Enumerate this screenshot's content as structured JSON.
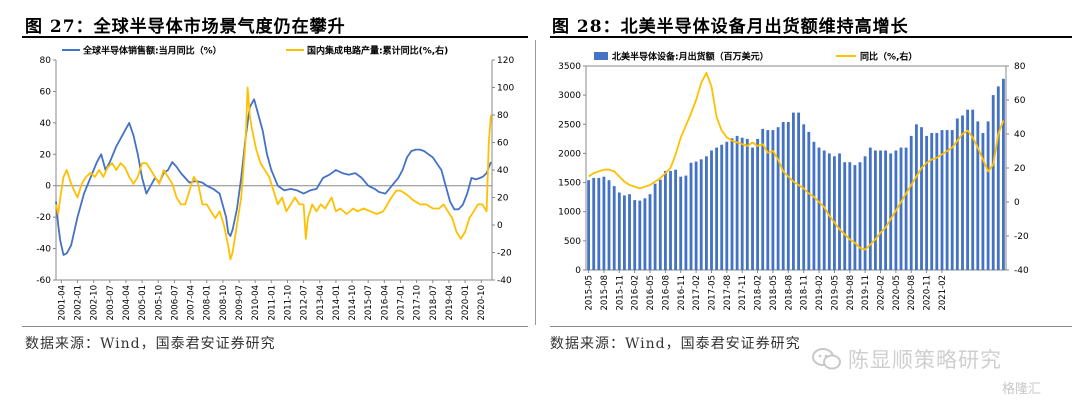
{
  "panel1": {
    "title": "图 27：全球半导体市场景气度仍在攀升",
    "source": "数据来源：Wind，国泰君安证券研究",
    "chart_data": {
      "type": "line",
      "series": [
        {
          "name": "全球半导体销售额:当月同比（%）",
          "axis": "left",
          "color": "#4472C4",
          "x": [
            2001.0,
            2001.1,
            2001.2,
            2001.35,
            2001.5,
            2001.7,
            2002.0,
            2002.3,
            2002.6,
            2002.9,
            2003.1,
            2003.3,
            2003.5,
            2003.8,
            2004.0,
            2004.2,
            2004.4,
            2004.6,
            2004.8,
            2005.0,
            2005.2,
            2005.4,
            2005.6,
            2005.8,
            2006.0,
            2006.2,
            2006.4,
            2006.6,
            2006.8,
            2007.0,
            2007.2,
            2007.5,
            2007.8,
            2008.0,
            2008.3,
            2008.6,
            2008.9,
            2009.0,
            2009.1,
            2009.2,
            2009.4,
            2009.6,
            2009.8,
            2010.0,
            2010.2,
            2010.4,
            2010.6,
            2010.8,
            2011.0,
            2011.3,
            2011.6,
            2011.9,
            2012.2,
            2012.5,
            2012.8,
            2013.1,
            2013.4,
            2013.7,
            2014.0,
            2014.3,
            2014.6,
            2014.9,
            2015.2,
            2015.5,
            2015.8,
            2016.0,
            2016.3,
            2016.6,
            2016.9,
            2017.1,
            2017.3,
            2017.5,
            2017.7,
            2017.9,
            2018.1,
            2018.3,
            2018.5,
            2018.7,
            2018.9,
            2019.1,
            2019.3,
            2019.5,
            2019.7,
            2019.9,
            2020.1,
            2020.3,
            2020.5,
            2020.7,
            2020.85,
            2021.0,
            2021.2
          ],
          "y": [
            -10,
            -25,
            -35,
            -44,
            -43,
            -38,
            -20,
            -5,
            5,
            15,
            20,
            10,
            15,
            25,
            30,
            35,
            40,
            32,
            20,
            5,
            -5,
            0,
            5,
            2,
            8,
            10,
            15,
            12,
            8,
            5,
            2,
            3,
            2,
            0,
            -2,
            -5,
            -20,
            -30,
            -32,
            -28,
            -15,
            5,
            30,
            50,
            55,
            45,
            35,
            20,
            10,
            0,
            -3,
            -2,
            -3,
            -5,
            -3,
            -2,
            5,
            7,
            10,
            8,
            7,
            8,
            5,
            0,
            -2,
            -4,
            -5,
            0,
            5,
            10,
            18,
            22,
            23,
            23,
            22,
            20,
            18,
            14,
            10,
            0,
            -10,
            -15,
            -15,
            -12,
            -5,
            5,
            4,
            5,
            6,
            8,
            15
          ]
        },
        {
          "name": "国内集成电路产量:累计同比(%,右)",
          "axis": "right",
          "color": "#FFC000",
          "x": [
            2001.0,
            2001.1,
            2001.2,
            2001.35,
            2001.5,
            2001.7,
            2002.0,
            2002.2,
            2002.4,
            2002.6,
            2002.8,
            2003.0,
            2003.2,
            2003.4,
            2003.6,
            2003.8,
            2004.0,
            2004.2,
            2004.4,
            2004.6,
            2004.8,
            2005.0,
            2005.2,
            2005.4,
            2005.6,
            2005.8,
            2006.0,
            2006.2,
            2006.4,
            2006.6,
            2006.8,
            2007.0,
            2007.2,
            2007.4,
            2007.6,
            2007.8,
            2008.0,
            2008.2,
            2008.4,
            2008.6,
            2008.8,
            2009.0,
            2009.1,
            2009.2,
            2009.4,
            2009.6,
            2009.8,
            2009.9,
            2010.0,
            2010.1,
            2010.3,
            2010.5,
            2010.7,
            2010.9,
            2011.1,
            2011.3,
            2011.5,
            2011.7,
            2011.9,
            2012.1,
            2012.3,
            2012.5,
            2012.6,
            2012.7,
            2012.9,
            2013.1,
            2013.3,
            2013.5,
            2013.8,
            2014.0,
            2014.2,
            2014.5,
            2014.8,
            2015.0,
            2015.3,
            2015.6,
            2015.9,
            2016.2,
            2016.5,
            2016.8,
            2017.0,
            2017.3,
            2017.6,
            2017.9,
            2018.2,
            2018.5,
            2018.8,
            2019.0,
            2019.2,
            2019.4,
            2019.6,
            2019.8,
            2020.0,
            2020.2,
            2020.4,
            2020.6,
            2020.8,
            2021.0,
            2021.1,
            2021.2
          ],
          "y": [
            15,
            8,
            20,
            35,
            40,
            30,
            20,
            30,
            35,
            38,
            35,
            40,
            35,
            42,
            45,
            40,
            45,
            42,
            35,
            30,
            35,
            45,
            45,
            40,
            35,
            30,
            40,
            35,
            30,
            20,
            15,
            15,
            25,
            35,
            30,
            15,
            15,
            10,
            5,
            10,
            0,
            -15,
            -25,
            -20,
            0,
            20,
            60,
            100,
            80,
            70,
            55,
            45,
            40,
            35,
            25,
            15,
            20,
            10,
            15,
            20,
            15,
            15,
            -10,
            5,
            15,
            10,
            15,
            12,
            20,
            10,
            12,
            8,
            12,
            10,
            12,
            10,
            8,
            10,
            18,
            25,
            25,
            22,
            18,
            15,
            15,
            12,
            12,
            15,
            10,
            5,
            -5,
            -10,
            -5,
            5,
            10,
            15,
            15,
            10,
            60,
            80
          ]
        }
      ],
      "x_tick_labels": [
        "2001-04",
        "2002-01",
        "2002-10",
        "2003-07",
        "2004-04",
        "2005-01",
        "2005-10",
        "2006-07",
        "2007-04",
        "2008-01",
        "2008-10",
        "2009-07",
        "2010-04",
        "2011-01",
        "2011-10",
        "2012-07",
        "2013-04",
        "2014-01",
        "2014-10",
        "2015-07",
        "2016-04",
        "2017-01",
        "2017-10",
        "2018-07",
        "2019-04",
        "2020-01",
        "2020-10"
      ],
      "y_left": {
        "ylim": [
          -60,
          80
        ],
        "ticks": [
          "80",
          "60",
          "40",
          "20",
          "0",
          "-20",
          "-40",
          "-60"
        ]
      },
      "y_right": {
        "ylim": [
          -40,
          120
        ],
        "ticks": [
          "120",
          "100",
          "80",
          "60",
          "40",
          "20",
          "0",
          "-20",
          "-40"
        ]
      },
      "legend_position": "top"
    }
  },
  "panel2": {
    "title": "图 28：北美半导体设备月出货额维持高增长",
    "source": "数据来源：Wind，国泰君安证券研究",
    "chart_data": {
      "type": "bar",
      "series": [
        {
          "name": "北美半导体设备:月出货额（百万美元）",
          "axis": "left",
          "color": "#4472C4",
          "values": [
            1540,
            1580,
            1580,
            1600,
            1540,
            1440,
            1330,
            1280,
            1300,
            1200,
            1190,
            1230,
            1300,
            1480,
            1550,
            1700,
            1700,
            1720,
            1600,
            1620,
            1840,
            1860,
            1900,
            1950,
            2050,
            2100,
            2150,
            2200,
            2260,
            2300,
            2270,
            2250,
            2100,
            2250,
            2420,
            2400,
            2400,
            2450,
            2540,
            2540,
            2700,
            2700,
            2500,
            2370,
            2200,
            2100,
            2050,
            2000,
            1950,
            2000,
            1850,
            1850,
            1800,
            1850,
            1950,
            2100,
            2050,
            2050,
            2050,
            2000,
            2050,
            2100,
            2100,
            2300,
            2500,
            2450,
            2300,
            2350,
            2350,
            2400,
            2400,
            2400,
            2600,
            2650,
            2750,
            2750,
            2550,
            2350,
            2550,
            3000,
            3150,
            3280
          ]
        },
        {
          "name": "同比（%,右）",
          "axis": "right",
          "color": "#FFC000",
          "values": [
            15,
            17,
            18,
            19,
            19,
            18,
            15,
            12,
            10,
            9,
            8,
            9,
            10,
            12,
            14,
            17,
            20,
            28,
            38,
            45,
            52,
            60,
            70,
            76,
            68,
            50,
            42,
            38,
            36,
            35,
            34,
            33,
            35,
            33,
            34,
            29,
            30,
            25,
            18,
            15,
            12,
            10,
            8,
            5,
            3,
            0,
            -3,
            -8,
            -12,
            -16,
            -19,
            -22,
            -24,
            -27,
            -28,
            -25,
            -22,
            -18,
            -15,
            -10,
            -5,
            0,
            5,
            10,
            15,
            20,
            23,
            25,
            26,
            28,
            30,
            32,
            36,
            40,
            42,
            38,
            32,
            25,
            18,
            22,
            40,
            48
          ]
        }
      ],
      "x_tick_labels": [
        "2015-05",
        "2015-08",
        "2015-11",
        "2016-02",
        "2016-05",
        "2016-08",
        "2016-11",
        "2017-02",
        "2017-05",
        "2017-08",
        "2017-11",
        "2018-02",
        "2018-05",
        "2018-08",
        "2018-11",
        "2019-02",
        "2019-05",
        "2019-08",
        "2019-11",
        "2020-02",
        "2020-05",
        "2020-08",
        "2020-11",
        "2021-02"
      ],
      "y_left": {
        "ylim": [
          0,
          3500
        ],
        "ticks": [
          "3500",
          "3000",
          "2500",
          "2000",
          "1500",
          "1000",
          "500",
          "0"
        ]
      },
      "y_right": {
        "ylim": [
          -40,
          80
        ],
        "ticks": [
          "80",
          "60",
          "40",
          "20",
          "0",
          "-20",
          "-40"
        ]
      },
      "legend_position": "top"
    }
  },
  "watermark": {
    "brand": "陈显顺策略研究",
    "corner": "格隆汇"
  }
}
